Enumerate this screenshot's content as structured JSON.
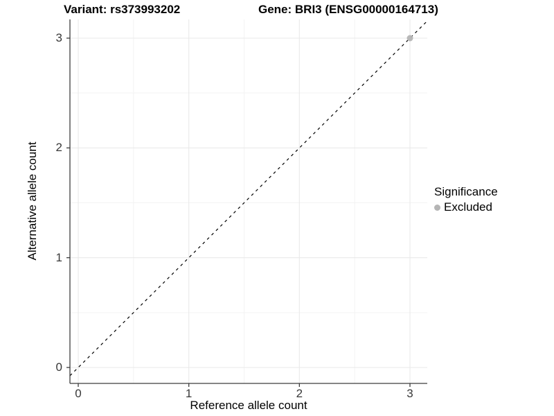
{
  "title": {
    "variant": "Variant: rs373993202",
    "gene": "Gene: BRI3 (ENSG00000164713)"
  },
  "axes": {
    "x": {
      "label": "Reference allele count",
      "tick_labels": [
        "0",
        "1",
        "2",
        "3"
      ]
    },
    "y": {
      "label": "Alternative allele count",
      "tick_labels": [
        "0",
        "1",
        "2",
        "3"
      ]
    }
  },
  "legend": {
    "title": "Significance",
    "items": [
      {
        "label": "Excluded",
        "color": "#b5b5b5"
      }
    ]
  },
  "colors": {
    "background": "#ffffff",
    "axis_line": "#3c3c3c",
    "major_grid": "#e9e9e9",
    "minor_grid": "#f3f3f3",
    "tick_text": "#383838",
    "reference_line": "#000000",
    "excluded_point": "#b5b5b5"
  },
  "chart_data": {
    "type": "scatter",
    "title": "Variant: rs373993202 — Gene: BRI3 (ENSG00000164713)",
    "xlabel": "Reference allele count",
    "ylabel": "Alternative allele count",
    "x_ticks": [
      0,
      1,
      2,
      3
    ],
    "y_ticks": [
      0,
      1,
      2,
      3
    ],
    "xlim": [
      -0.08,
      3.16
    ],
    "ylim": [
      -0.17,
      3.17
    ],
    "grid": "major and minor, light gray on white",
    "legend_position": "right",
    "series": [
      {
        "name": "Excluded",
        "color": "#b5b5b5",
        "points": [
          [
            3,
            3
          ]
        ]
      }
    ],
    "reference_line": {
      "slope": 1,
      "intercept": 0,
      "style": "dashed",
      "color": "#000000"
    }
  }
}
